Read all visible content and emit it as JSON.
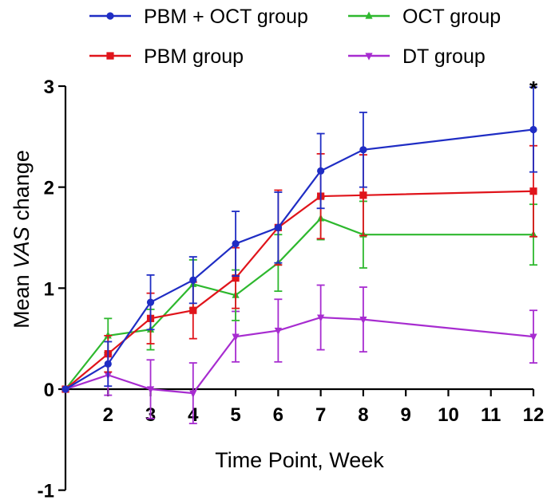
{
  "chart_data": {
    "type": "line",
    "title": "",
    "xlabel": "Time Point, Week",
    "ylabel_parts": [
      "Mean ",
      "VAS",
      " change"
    ],
    "xlim": [
      1,
      12
    ],
    "ylim": [
      -1,
      3
    ],
    "x_ticks": [
      2,
      3,
      4,
      5,
      6,
      7,
      8,
      9,
      10,
      11,
      12
    ],
    "y_ticks": [
      -1,
      0,
      1,
      2,
      3
    ],
    "legend_position": "top",
    "annotation": {
      "text": "*",
      "x": 12,
      "y": 3.0
    },
    "series": [
      {
        "name": "PBM  + OCT group",
        "color": "#1f2dc4",
        "marker": "circle",
        "x": [
          1,
          2,
          3,
          4,
          5,
          6,
          7,
          8,
          12
        ],
        "values": [
          0,
          0.25,
          0.86,
          1.08,
          1.44,
          1.6,
          2.16,
          2.37,
          2.57
        ],
        "error": [
          0,
          0.22,
          0.27,
          0.23,
          0.32,
          0.35,
          0.37,
          0.37,
          0.42
        ]
      },
      {
        "name": "PBM  group",
        "color": "#e0141b",
        "marker": "square",
        "x": [
          1,
          2,
          3,
          4,
          5,
          6,
          7,
          8,
          12
        ],
        "values": [
          0,
          0.35,
          0.7,
          0.78,
          1.1,
          1.6,
          1.91,
          1.92,
          1.96
        ],
        "error": [
          0,
          0.18,
          0.25,
          0.28,
          0.3,
          0.37,
          0.42,
          0.4,
          0.45
        ]
      },
      {
        "name": "OCT group",
        "color": "#2eb82e",
        "marker": "triangle-up",
        "x": [
          1,
          2,
          3,
          4,
          5,
          6,
          7,
          8,
          12
        ],
        "values": [
          0,
          0.53,
          0.59,
          1.04,
          0.93,
          1.25,
          1.69,
          1.53,
          1.53
        ],
        "error": [
          0,
          0.17,
          0.2,
          0.24,
          0.25,
          0.28,
          0.21,
          0.33,
          0.3
        ]
      },
      {
        "name": "DT group",
        "color": "#a72cd0",
        "marker": "triangle-down",
        "x": [
          1,
          2,
          3,
          4,
          5,
          6,
          7,
          8,
          12
        ],
        "values": [
          0,
          0.14,
          0.0,
          -0.04,
          0.52,
          0.58,
          0.71,
          0.69,
          0.52
        ],
        "error": [
          0,
          0.2,
          0.29,
          0.3,
          0.25,
          0.31,
          0.32,
          0.32,
          0.26
        ]
      }
    ]
  }
}
